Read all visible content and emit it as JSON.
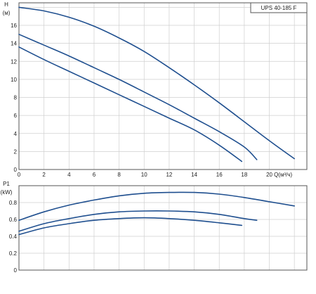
{
  "colors": {
    "curve": "#1f4f8f",
    "grid": "#cfcfcf",
    "frame": "#555555",
    "text": "#222222"
  },
  "model_label": "UPS 40-185 F",
  "chart_data": [
    {
      "type": "line",
      "ylabel": "H",
      "yunit": "(м)",
      "xlabel": "Q(м³/ч)",
      "xlim": [
        0,
        23
      ],
      "ylim": [
        0,
        18.5
      ],
      "xticks": [
        "0",
        "2",
        "4",
        "6",
        "8",
        "10",
        "12",
        "14",
        "16",
        "18",
        "20"
      ],
      "yticks": [
        "0",
        "2",
        "4",
        "6",
        "8",
        "10",
        "12",
        "14",
        "16"
      ],
      "grid": true,
      "series": [
        {
          "x": [
            0,
            2,
            4,
            6,
            8,
            10,
            12,
            14,
            16,
            18,
            20,
            22
          ],
          "values": [
            18.0,
            17.6,
            16.9,
            15.9,
            14.6,
            13.1,
            11.3,
            9.4,
            7.4,
            5.3,
            3.2,
            1.2
          ]
        },
        {
          "x": [
            0,
            2,
            4,
            6,
            8,
            10,
            12,
            14,
            16,
            18,
            19
          ],
          "values": [
            15.0,
            13.8,
            12.6,
            11.3,
            10.0,
            8.6,
            7.2,
            5.7,
            4.2,
            2.5,
            1.1
          ]
        },
        {
          "x": [
            0,
            2,
            4,
            6,
            8,
            10,
            12,
            14,
            16,
            17.8
          ],
          "values": [
            13.6,
            12.2,
            10.9,
            9.6,
            8.3,
            7.0,
            5.7,
            4.4,
            2.7,
            0.9
          ]
        }
      ]
    },
    {
      "type": "line",
      "ylabel": "P1",
      "yunit": "(kW)",
      "xlim": [
        0,
        23
      ],
      "ylim": [
        0,
        1.0
      ],
      "yticks": [
        "0",
        "0.2",
        "0.4",
        "0.6",
        "0.8"
      ],
      "grid": true,
      "series": [
        {
          "x": [
            0,
            2,
            4,
            6,
            8,
            10,
            12,
            14,
            16,
            18,
            20,
            22
          ],
          "values": [
            0.59,
            0.69,
            0.77,
            0.83,
            0.88,
            0.91,
            0.92,
            0.92,
            0.9,
            0.86,
            0.81,
            0.76
          ]
        },
        {
          "x": [
            0,
            2,
            4,
            6,
            8,
            10,
            12,
            14,
            16,
            18,
            19
          ],
          "values": [
            0.46,
            0.55,
            0.61,
            0.66,
            0.69,
            0.7,
            0.7,
            0.69,
            0.66,
            0.61,
            0.59
          ]
        },
        {
          "x": [
            0,
            2,
            4,
            6,
            8,
            10,
            12,
            14,
            16,
            17.8
          ],
          "values": [
            0.42,
            0.5,
            0.55,
            0.59,
            0.61,
            0.62,
            0.61,
            0.59,
            0.56,
            0.53
          ]
        }
      ]
    }
  ]
}
